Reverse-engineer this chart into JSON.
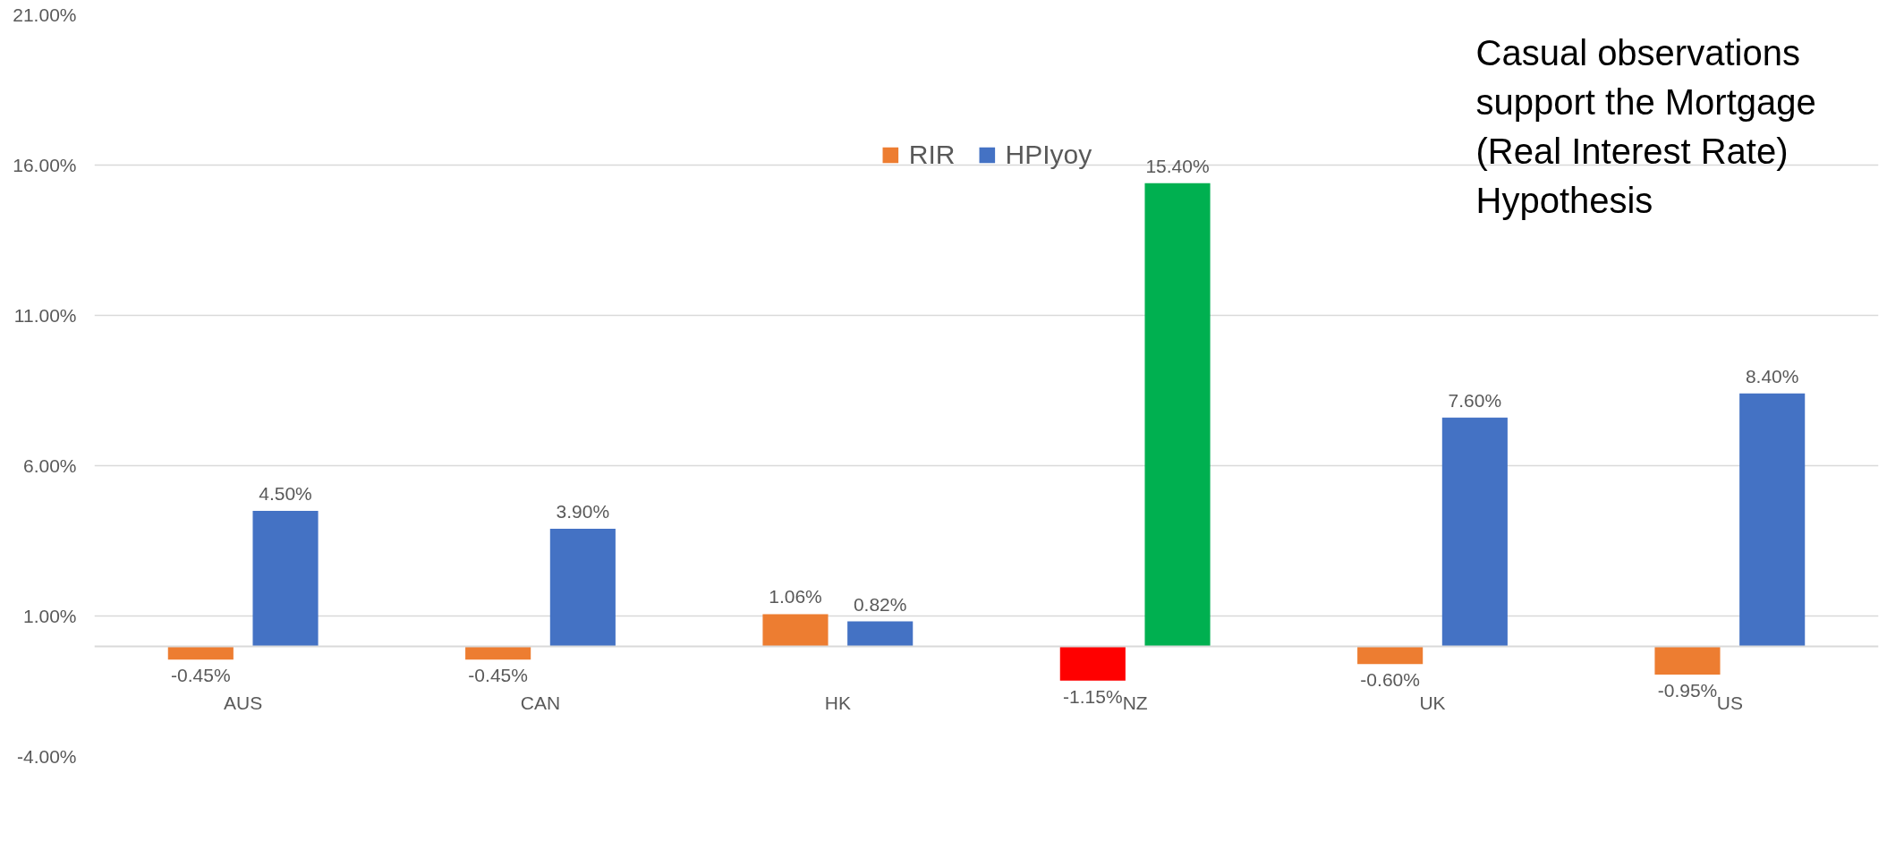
{
  "chart_data": {
    "type": "bar",
    "categories": [
      "AUS",
      "CAN",
      "HK",
      "NZ",
      "UK",
      "US"
    ],
    "series": [
      {
        "name": "RIR",
        "color": "#ed7d31",
        "colors": [
          "#ed7d31",
          "#ed7d31",
          "#ed7d31",
          "#ff0000",
          "#ed7d31",
          "#ed7d31"
        ],
        "values": [
          -0.45,
          -0.45,
          1.06,
          -1.15,
          -0.6,
          -0.95
        ],
        "value_labels": [
          "-0.45%",
          "-0.45%",
          "1.06%",
          "-1.15%",
          "-0.60%",
          "-0.95%"
        ]
      },
      {
        "name": "HPIyoy",
        "color": "#4472c4",
        "colors": [
          "#4472c4",
          "#4472c4",
          "#4472c4",
          "#00b050",
          "#4472c4",
          "#4472c4"
        ],
        "values": [
          4.5,
          3.9,
          0.82,
          15.4,
          7.6,
          8.4
        ],
        "value_labels": [
          "4.50%",
          "3.90%",
          "0.82%",
          "15.40%",
          "7.60%",
          "8.40%"
        ]
      }
    ],
    "ylim": [
      -4,
      21
    ],
    "yticks": [
      {
        "value": -4,
        "label": "-4.00%"
      },
      {
        "value": 1,
        "label": "1.00%"
      },
      {
        "value": 6,
        "label": "6.00%"
      },
      {
        "value": 11,
        "label": "11.00%"
      },
      {
        "value": 16,
        "label": "16.00%"
      },
      {
        "value": 21,
        "label": "21.00%"
      }
    ],
    "grid": "y",
    "legend": "top",
    "annotations": [
      "Casual observations support the Mortgage (Real Interest Rate) Hypothesis"
    ]
  }
}
